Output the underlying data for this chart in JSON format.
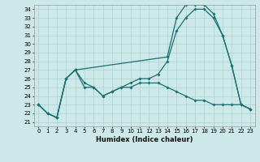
{
  "xlabel": "Humidex (Indice chaleur)",
  "xlim": [
    -0.5,
    23.5
  ],
  "ylim": [
    20.5,
    34.5
  ],
  "xticks": [
    0,
    1,
    2,
    3,
    4,
    5,
    6,
    7,
    8,
    9,
    10,
    11,
    12,
    13,
    14,
    15,
    16,
    17,
    18,
    19,
    20,
    21,
    22,
    23
  ],
  "yticks": [
    21,
    22,
    23,
    24,
    25,
    26,
    27,
    28,
    29,
    30,
    31,
    32,
    33,
    34
  ],
  "bg_color": "#cce8e8",
  "grid_color": "#aad0d0",
  "line_color": "#1a7070",
  "line1_x": [
    0,
    1,
    2,
    3,
    4,
    5,
    6,
    7,
    8,
    9,
    10,
    11,
    12,
    13,
    14,
    15,
    16,
    17,
    18,
    19,
    20,
    21,
    22,
    23
  ],
  "line1_y": [
    23,
    22,
    21.5,
    26,
    27,
    25,
    25,
    24,
    24.5,
    25,
    25.5,
    26,
    26,
    26.5,
    28,
    31.5,
    33,
    34,
    34,
    33,
    31,
    27.5,
    23,
    22.5
  ],
  "line2_x": [
    0,
    1,
    2,
    3,
    4,
    14,
    15,
    16,
    17,
    18,
    19,
    20,
    21,
    22,
    23
  ],
  "line2_y": [
    23,
    22,
    21.5,
    26,
    27,
    28.5,
    33,
    34.5,
    34.5,
    34.5,
    33.5,
    31,
    27.5,
    23,
    22.5
  ],
  "line3_x": [
    0,
    1,
    2,
    3,
    4,
    5,
    6,
    7,
    8,
    9,
    10,
    11,
    12,
    13,
    14,
    15,
    16,
    17,
    18,
    19,
    20,
    21,
    22,
    23
  ],
  "line3_y": [
    23,
    22,
    21.5,
    26,
    27,
    25.5,
    25,
    24,
    24.5,
    25,
    25,
    25.5,
    25.5,
    25.5,
    25,
    24.5,
    24,
    23.5,
    23.5,
    23,
    23,
    23,
    23,
    22.5
  ]
}
